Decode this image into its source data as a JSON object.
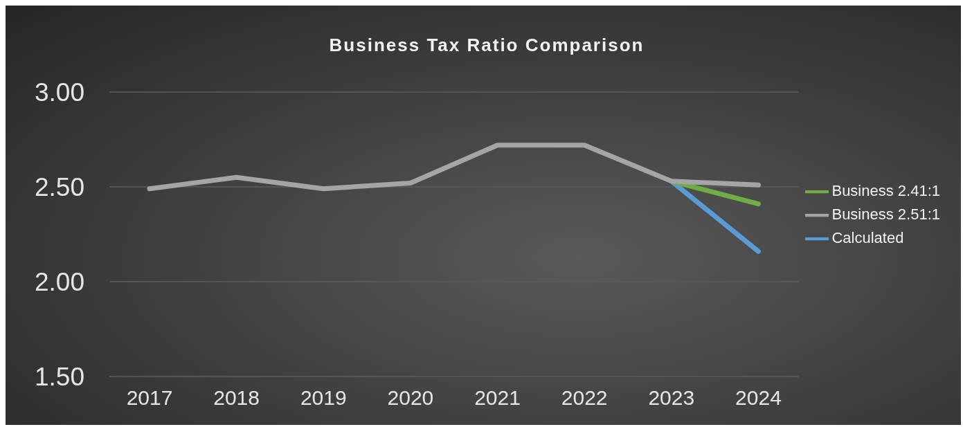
{
  "chart_data": {
    "type": "line",
    "title": "Business Tax Ratio Comparison",
    "categories": [
      "2017",
      "2018",
      "2019",
      "2020",
      "2021",
      "2022",
      "2023",
      "2024"
    ],
    "series": [
      {
        "name": "Calculated",
        "color": "#5b9bd5",
        "values": [
          null,
          null,
          null,
          null,
          null,
          null,
          2.53,
          2.16
        ]
      },
      {
        "name": "Business 2.41:1",
        "color": "#70ad47",
        "values": [
          null,
          null,
          null,
          null,
          null,
          null,
          2.53,
          2.41
        ]
      },
      {
        "name": "Business 2.51:1",
        "color": "#a5a5a5",
        "values": [
          2.49,
          2.55,
          2.49,
          2.52,
          2.72,
          2.72,
          2.53,
          2.51
        ]
      }
    ],
    "ylim": [
      1.5,
      3
    ],
    "yticks": [
      {
        "value": 1.5,
        "label": "1.50"
      },
      {
        "value": 2,
        "label": "2.00"
      },
      {
        "value": 2.5,
        "label": "2.50"
      },
      {
        "value": 3,
        "label": "3.00"
      }
    ],
    "grid": "y",
    "legend": "right",
    "marker": "none",
    "line_style": "solid"
  }
}
